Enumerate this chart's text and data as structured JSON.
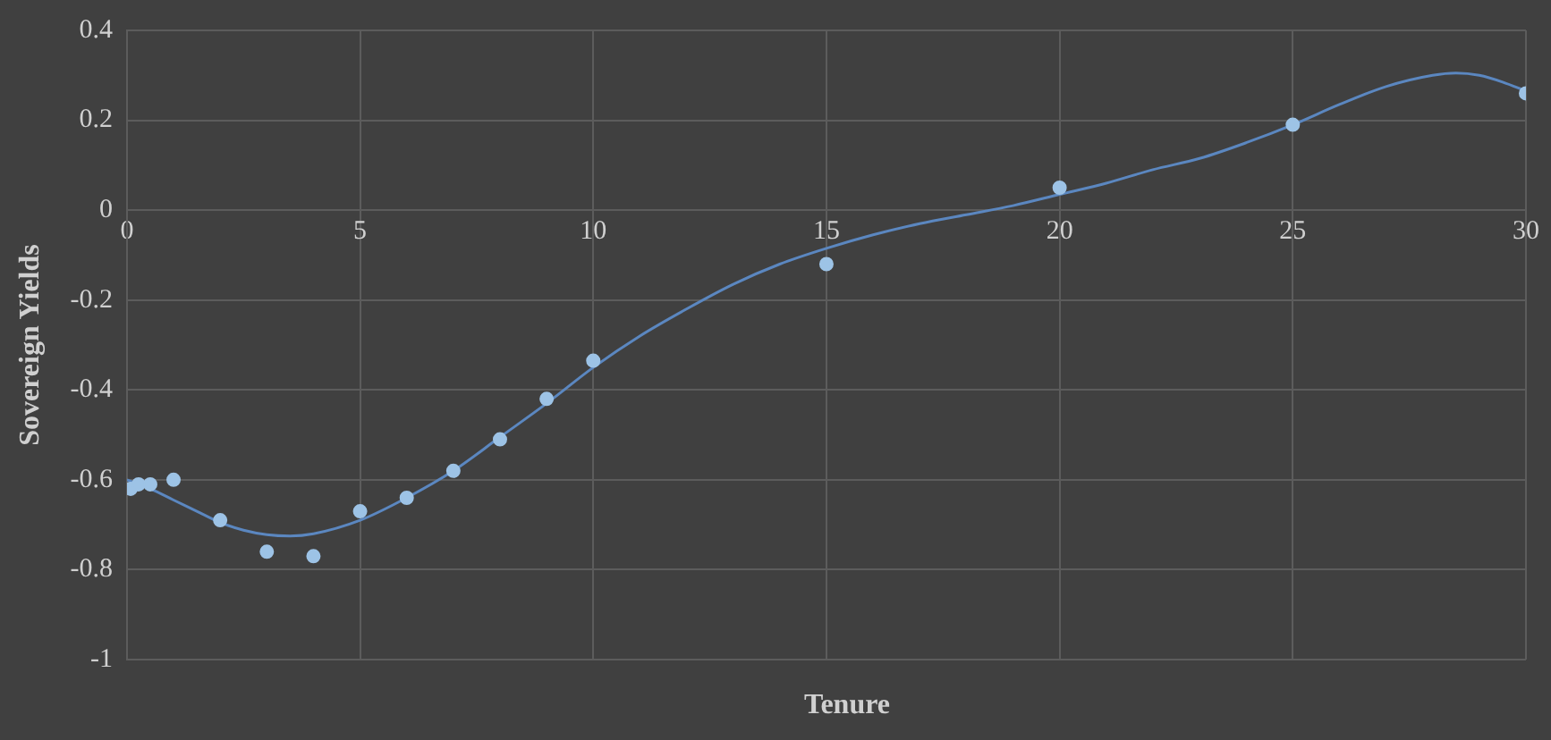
{
  "chart_data": {
    "type": "scatter",
    "xlabel": "Tenure",
    "ylabel": "Sovereign Yields",
    "xlim": [
      0,
      30
    ],
    "xticks": [
      0,
      5,
      10,
      15,
      20,
      25,
      30
    ],
    "ylim": [
      -1,
      0.4
    ],
    "yticks": [
      -1,
      -0.8,
      -0.6,
      -0.4,
      -0.2,
      0,
      0.2,
      0.4
    ],
    "grid": true,
    "legend": false,
    "series": [
      {
        "color": "#9dc3e6",
        "marker": "circle",
        "x": [
          0.08,
          0.25,
          0.5,
          1,
          2,
          3,
          4,
          5,
          6,
          7,
          8,
          9,
          10,
          15,
          20,
          25,
          30
        ],
        "values": [
          -0.62,
          -0.61,
          -0.61,
          -0.6,
          -0.69,
          -0.76,
          -0.77,
          -0.67,
          -0.64,
          -0.58,
          -0.51,
          -0.42,
          -0.335,
          -0.12,
          0.05,
          0.19,
          0.26
        ]
      },
      {
        "type": "line",
        "color": "#5b87c0",
        "marker": "none",
        "line_style": "solid",
        "x": [
          0,
          0.5,
          1,
          1.5,
          2,
          2.5,
          3,
          3.5,
          4,
          5,
          6,
          7,
          8,
          9,
          10,
          11,
          12,
          13,
          14,
          15,
          16,
          17,
          18,
          19,
          20,
          21,
          22,
          23,
          24,
          25,
          26,
          27,
          28,
          28.5,
          29,
          29.5,
          30
        ],
        "values": [
          -0.6,
          -0.62,
          -0.645,
          -0.67,
          -0.695,
          -0.712,
          -0.722,
          -0.725,
          -0.72,
          -0.69,
          -0.64,
          -0.58,
          -0.505,
          -0.43,
          -0.35,
          -0.28,
          -0.22,
          -0.165,
          -0.12,
          -0.085,
          -0.055,
          -0.03,
          -0.01,
          0.01,
          0.035,
          0.06,
          0.09,
          0.115,
          0.15,
          0.19,
          0.235,
          0.275,
          0.3,
          0.305,
          0.3,
          0.285,
          0.265
        ]
      }
    ]
  }
}
